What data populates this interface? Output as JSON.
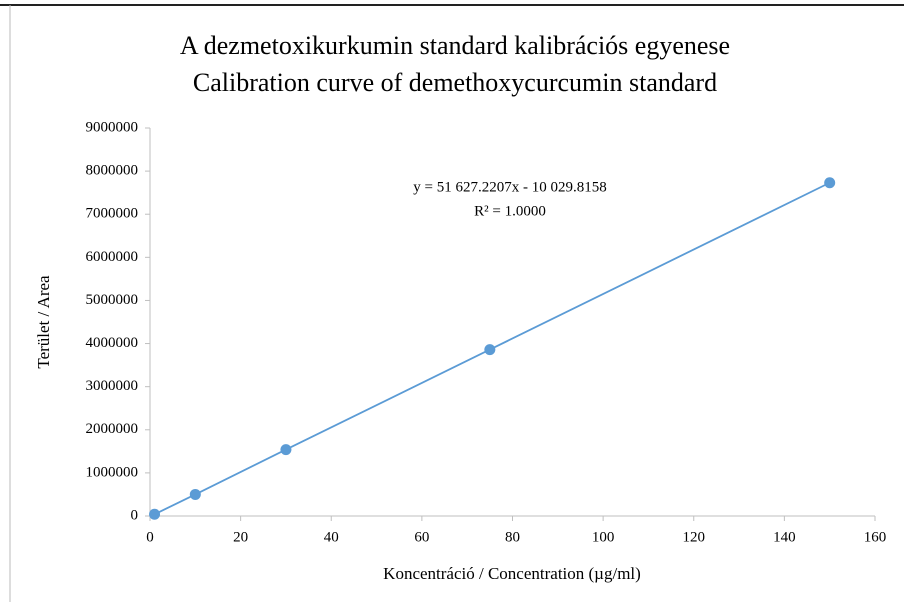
{
  "chart_data": {
    "type": "scatter",
    "title": "A dezmetoxikurkumin standard kalibrációs egyenese",
    "subtitle": "Calibration curve of demethoxycurcumin standard",
    "x_label": "Koncentráció / Concentration (µg/ml)",
    "y_label": "Terület / Area",
    "annotations": [
      "y = 51 627.2207x - 10 029.8158",
      "R² = 1.0000"
    ],
    "x": [
      1,
      10,
      30,
      75,
      150
    ],
    "values": [
      40000,
      500000,
      1540000,
      3860000,
      7730000
    ],
    "color": "#5b9bd5",
    "trendline": true,
    "xlim": [
      0,
      160
    ],
    "xticks": [
      0,
      20,
      40,
      60,
      80,
      100,
      120,
      140,
      160
    ],
    "ylim": [
      0,
      9000000
    ],
    "yticks": [
      0,
      1000000,
      2000000,
      3000000,
      4000000,
      5000000,
      6000000,
      7000000,
      8000000,
      9000000
    ],
    "grid": false
  }
}
